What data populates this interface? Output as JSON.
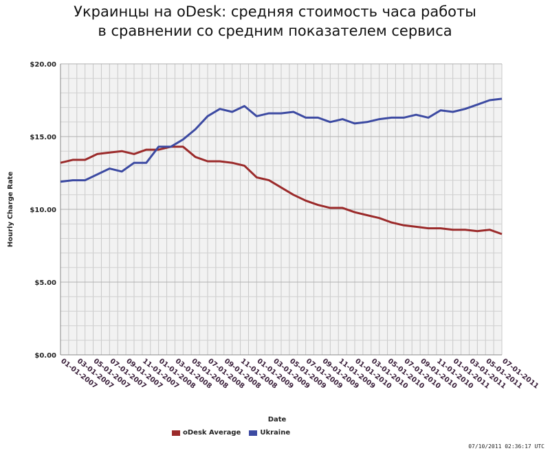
{
  "title_line1": "Украинцы на oDesk: средняя стоимость часа работы",
  "title_line2": "в сравнении со средним показателем сервиса",
  "timestamp": "07/10/2011 02:36:17 UTC",
  "chart_data": {
    "type": "line",
    "xlabel": "Date",
    "ylabel": "Hourly Charge Rate",
    "ylim": [
      0,
      20
    ],
    "y_ticks": [
      "$0.00",
      "$5.00",
      "$10.00",
      "$15.00",
      "$20.00"
    ],
    "x_ticks": [
      "01-01-2007",
      "03-01-2007",
      "05-01-2007",
      "07-01-2007",
      "09-01-2007",
      "11-01-2007",
      "01-01-2008",
      "03-01-2008",
      "05-01-2008",
      "07-01-2008",
      "09-01-2008",
      "11-01-2008",
      "01-01-2009",
      "03-01-2009",
      "05-01-2009",
      "07-01-2009",
      "09-01-2009",
      "11-01-2009",
      "01-01-2010",
      "03-01-2010",
      "05-01-2010",
      "07-01-2010",
      "09-01-2010",
      "11-01-2010",
      "01-01-2011",
      "03-01-2011",
      "05-01-2011",
      "07-01-2011"
    ],
    "grid": true,
    "legend_position": "bottom",
    "series": [
      {
        "name": "oDesk Average",
        "color": "#9b2a2a",
        "values": [
          13.2,
          13.4,
          13.4,
          13.8,
          13.9,
          14.0,
          13.8,
          14.1,
          14.1,
          14.3,
          14.3,
          13.6,
          13.3,
          13.3,
          13.2,
          13.0,
          12.2,
          12.0,
          11.5,
          11.0,
          10.6,
          10.3,
          10.1,
          10.1,
          9.8,
          9.6,
          9.4,
          9.1,
          8.9,
          8.8,
          8.7,
          8.7,
          8.6,
          8.6,
          8.5,
          8.6,
          8.3
        ]
      },
      {
        "name": "Ukraine",
        "color": "#3c4aa2",
        "values": [
          11.9,
          12.0,
          12.0,
          12.4,
          12.8,
          12.6,
          13.2,
          13.2,
          14.3,
          14.3,
          14.8,
          15.5,
          16.4,
          16.9,
          16.7,
          17.1,
          16.4,
          16.6,
          16.6,
          16.7,
          16.3,
          16.3,
          16.0,
          16.2,
          15.9,
          16.0,
          16.2,
          16.3,
          16.3,
          16.5,
          16.3,
          16.8,
          16.7,
          16.9,
          17.2,
          17.5,
          17.6
        ]
      }
    ]
  }
}
